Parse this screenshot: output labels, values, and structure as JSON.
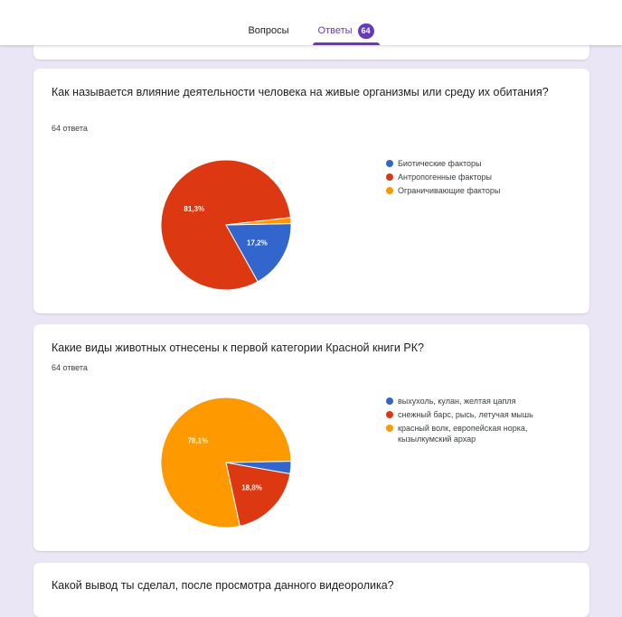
{
  "tabs": {
    "questions_label": "Вопросы",
    "answers_label": "Ответы",
    "answers_count": "64"
  },
  "questions": [
    {
      "title": "Как называется влияние деятельности человека на живые организмы или среду их обитания?",
      "count": "64 ответа",
      "chart_data": {
        "type": "pie",
        "categories": [
          "Биотические факторы",
          "Антропогенные факторы",
          "Ограничивающие факторы"
        ],
        "values": [
          17.2,
          81.3,
          1.5
        ],
        "labels": [
          "17,2%",
          "81,3%",
          ""
        ],
        "colors": [
          "#3366cc",
          "#dc3912",
          "#ff9900"
        ],
        "legend": "right"
      }
    },
    {
      "title": "Какие виды животных отнесены к первой категории Красной книги РК?",
      "count": "64 ответа",
      "chart_data": {
        "type": "pie",
        "categories": [
          "выхухоль, кулан, желтая цапля",
          "снежный барс, рысь, летучая мышь",
          "красный волк, европейская норка, кызылкумский архар"
        ],
        "values": [
          3.1,
          18.8,
          78.1
        ],
        "labels": [
          "",
          "18,8%",
          "78,1%"
        ],
        "colors": [
          "#3366cc",
          "#dc3912",
          "#ff9900"
        ],
        "legend": "right"
      }
    },
    {
      "title": "Какой вывод ты сделал, после просмотра данного видеоролика?"
    }
  ]
}
